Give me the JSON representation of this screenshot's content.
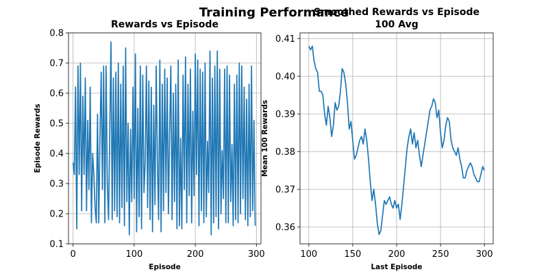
{
  "suptitle": "Training Performance",
  "chart_data": [
    {
      "type": "line",
      "title": "Rewards vs Episode",
      "xlabel": "Episode",
      "ylabel": "Episode Rewards",
      "xlim": [
        -7.5,
        307.5
      ],
      "ylim": [
        0.1,
        0.8
      ],
      "xticks": [
        0,
        100,
        200,
        300
      ],
      "yticks": [
        0.1,
        0.2,
        0.3,
        0.4,
        0.5,
        0.6,
        0.7,
        0.8
      ],
      "grid": true,
      "series": [
        {
          "color": "#1f77b4",
          "x": [
            0,
            2,
            4,
            6,
            8,
            10,
            12,
            14,
            16,
            18,
            20,
            22,
            24,
            26,
            28,
            30,
            32,
            34,
            36,
            38,
            40,
            42,
            44,
            46,
            48,
            50,
            52,
            54,
            56,
            58,
            60,
            62,
            64,
            66,
            68,
            70,
            72,
            74,
            76,
            78,
            80,
            82,
            84,
            86,
            88,
            90,
            92,
            94,
            96,
            98,
            100,
            102,
            104,
            106,
            108,
            110,
            112,
            114,
            116,
            118,
            120,
            122,
            124,
            126,
            128,
            130,
            132,
            134,
            136,
            138,
            140,
            142,
            144,
            146,
            148,
            150,
            152,
            154,
            156,
            158,
            160,
            162,
            164,
            166,
            168,
            170,
            172,
            174,
            176,
            178,
            180,
            182,
            184,
            186,
            188,
            190,
            192,
            194,
            196,
            198,
            200,
            202,
            204,
            206,
            208,
            210,
            212,
            214,
            216,
            218,
            220,
            222,
            224,
            226,
            228,
            230,
            232,
            234,
            236,
            238,
            240,
            242,
            244,
            246,
            248,
            250,
            252,
            254,
            256,
            258,
            260,
            262,
            264,
            266,
            268,
            270,
            272,
            274,
            276,
            278,
            280,
            282,
            284,
            286,
            288,
            290,
            292,
            294,
            296,
            298
          ],
          "values": [
            0.37,
            0.33,
            0.62,
            0.15,
            0.69,
            0.33,
            0.7,
            0.21,
            0.59,
            0.33,
            0.65,
            0.21,
            0.51,
            0.28,
            0.62,
            0.17,
            0.4,
            0.33,
            0.22,
            0.17,
            0.53,
            0.17,
            0.45,
            0.67,
            0.28,
            0.69,
            0.17,
            0.69,
            0.3,
            0.18,
            0.46,
            0.77,
            0.18,
            0.65,
            0.21,
            0.67,
            0.19,
            0.7,
            0.17,
            0.63,
            0.22,
            0.69,
            0.16,
            0.75,
            0.24,
            0.5,
            0.13,
            0.48,
            0.24,
            0.62,
            0.25,
            0.73,
            0.14,
            0.55,
            0.19,
            0.69,
            0.15,
            0.66,
            0.27,
            0.37,
            0.69,
            0.22,
            0.64,
            0.18,
            0.62,
            0.14,
            0.56,
            0.23,
            0.69,
            0.37,
            0.18,
            0.71,
            0.14,
            0.63,
            0.21,
            0.68,
            0.27,
            0.65,
            0.2,
            0.47,
            0.69,
            0.18,
            0.6,
            0.24,
            0.63,
            0.15,
            0.71,
            0.16,
            0.45,
            0.15,
            0.66,
            0.28,
            0.72,
            0.17,
            0.63,
            0.26,
            0.68,
            0.17,
            0.54,
            0.26,
            0.73,
            0.33,
            0.71,
            0.16,
            0.68,
            0.21,
            0.67,
            0.17,
            0.7,
            0.19,
            0.44,
            0.27,
            0.74,
            0.13,
            0.65,
            0.17,
            0.69,
            0.19,
            0.74,
            0.15,
            0.68,
            0.2,
            0.41,
            0.25,
            0.68,
            0.17,
            0.69,
            0.17,
            0.66,
            0.24,
            0.43,
            0.16,
            0.63,
            0.18,
            0.66,
            0.17,
            0.7,
            0.2,
            0.69,
            0.25,
            0.62,
            0.18,
            0.58,
            0.16,
            0.63,
            0.19,
            0.69,
            0.21,
            0.51,
            0.16
          ]
        }
      ]
    },
    {
      "type": "line",
      "title": "Smoothed Rewards vs Episode\n100 Avg",
      "xlabel": "Last Episode",
      "ylabel": "Mean 100 Rewards",
      "xlim": [
        90,
        310
      ],
      "ylim": [
        0.3555,
        0.4115
      ],
      "xticks": [
        100,
        150,
        200,
        250,
        300
      ],
      "yticks": [
        0.36,
        0.37,
        0.38,
        0.39,
        0.4,
        0.41
      ],
      "grid": true,
      "series": [
        {
          "color": "#1f77b4",
          "x": [
            100,
            102,
            104,
            106,
            108,
            110,
            112,
            114,
            116,
            118,
            120,
            122,
            124,
            126,
            128,
            130,
            132,
            134,
            136,
            138,
            140,
            142,
            144,
            146,
            148,
            150,
            152,
            154,
            156,
            158,
            160,
            162,
            164,
            166,
            168,
            170,
            172,
            174,
            176,
            178,
            180,
            182,
            184,
            186,
            188,
            190,
            192,
            194,
            196,
            198,
            200,
            202,
            204,
            206,
            208,
            210,
            212,
            214,
            216,
            218,
            220,
            222,
            224,
            226,
            228,
            230,
            232,
            234,
            236,
            238,
            240,
            242,
            244,
            246,
            248,
            250,
            252,
            254,
            256,
            258,
            260,
            262,
            264,
            266,
            268,
            270,
            272,
            274,
            276,
            278,
            280,
            282,
            284,
            286,
            288,
            290,
            292,
            294,
            296,
            298,
            300
          ],
          "values": [
            0.408,
            0.407,
            0.408,
            0.404,
            0.402,
            0.401,
            0.396,
            0.396,
            0.395,
            0.39,
            0.387,
            0.392,
            0.389,
            0.384,
            0.387,
            0.393,
            0.391,
            0.392,
            0.396,
            0.402,
            0.401,
            0.398,
            0.393,
            0.386,
            0.388,
            0.383,
            0.378,
            0.379,
            0.381,
            0.383,
            0.384,
            0.382,
            0.386,
            0.383,
            0.378,
            0.372,
            0.367,
            0.37,
            0.366,
            0.361,
            0.358,
            0.359,
            0.363,
            0.367,
            0.366,
            0.367,
            0.368,
            0.366,
            0.365,
            0.367,
            0.365,
            0.366,
            0.362,
            0.366,
            0.371,
            0.376,
            0.381,
            0.384,
            0.386,
            0.382,
            0.385,
            0.381,
            0.383,
            0.379,
            0.376,
            0.379,
            0.382,
            0.385,
            0.388,
            0.391,
            0.392,
            0.394,
            0.393,
            0.389,
            0.391,
            0.385,
            0.381,
            0.383,
            0.387,
            0.389,
            0.388,
            0.383,
            0.381,
            0.38,
            0.379,
            0.381,
            0.378,
            0.376,
            0.373,
            0.373,
            0.375,
            0.376,
            0.377,
            0.376,
            0.374,
            0.373,
            0.372,
            0.372,
            0.374,
            0.376,
            0.375
          ]
        }
      ]
    }
  ]
}
